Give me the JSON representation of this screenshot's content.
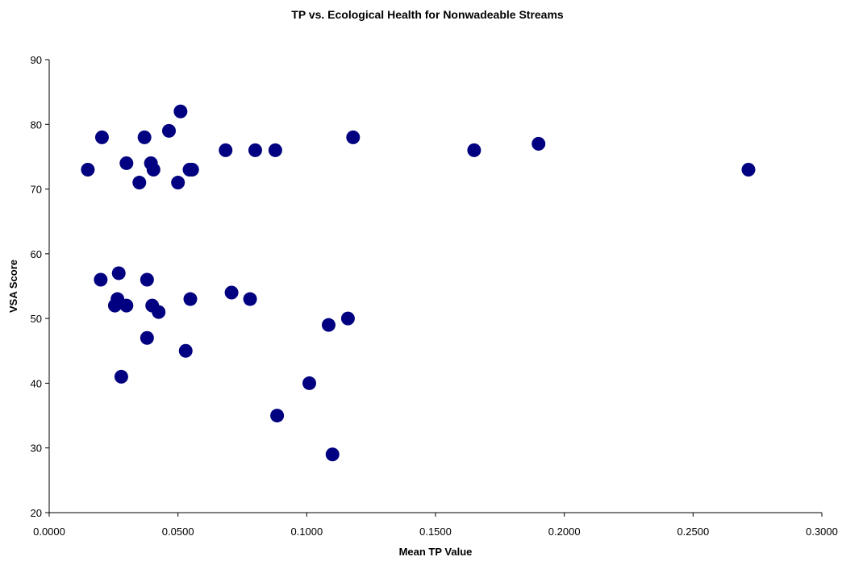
{
  "chart_data": {
    "type": "scatter",
    "title": "TP vs. Ecological Health for Nonwadeable Streams",
    "xlabel": "Mean TP Value",
    "ylabel": "VSA Score",
    "xlim": [
      0,
      0.3
    ],
    "ylim": [
      20,
      90
    ],
    "x_ticks": [
      0,
      0.05,
      0.1,
      0.15,
      0.2,
      0.25,
      0.3
    ],
    "x_tick_labels": [
      "0.0000",
      "0.0500",
      "0.1000",
      "0.1500",
      "0.2000",
      "0.2500",
      "0.3000"
    ],
    "y_ticks": [
      20,
      30,
      40,
      50,
      60,
      70,
      80,
      90
    ],
    "y_tick_labels": [
      "20",
      "30",
      "40",
      "50",
      "60",
      "70",
      "80",
      "90"
    ],
    "grid": false,
    "legend": "none",
    "marker_color": "#000080",
    "points": [
      {
        "x": 0.015,
        "y": 73
      },
      {
        "x": 0.0205,
        "y": 78
      },
      {
        "x": 0.03,
        "y": 74
      },
      {
        "x": 0.035,
        "y": 71
      },
      {
        "x": 0.037,
        "y": 78
      },
      {
        "x": 0.0395,
        "y": 74
      },
      {
        "x": 0.0405,
        "y": 73
      },
      {
        "x": 0.0465,
        "y": 79
      },
      {
        "x": 0.05,
        "y": 71
      },
      {
        "x": 0.051,
        "y": 82
      },
      {
        "x": 0.0545,
        "y": 73
      },
      {
        "x": 0.0555,
        "y": 73
      },
      {
        "x": 0.0685,
        "y": 76
      },
      {
        "x": 0.08,
        "y": 76
      },
      {
        "x": 0.0878,
        "y": 76
      },
      {
        "x": 0.118,
        "y": 78
      },
      {
        "x": 0.165,
        "y": 76
      },
      {
        "x": 0.19,
        "y": 77
      },
      {
        "x": 0.2715,
        "y": 73
      },
      {
        "x": 0.02,
        "y": 56
      },
      {
        "x": 0.027,
        "y": 57
      },
      {
        "x": 0.0265,
        "y": 53
      },
      {
        "x": 0.0255,
        "y": 52
      },
      {
        "x": 0.03,
        "y": 52
      },
      {
        "x": 0.038,
        "y": 56
      },
      {
        "x": 0.04,
        "y": 52
      },
      {
        "x": 0.0425,
        "y": 51
      },
      {
        "x": 0.038,
        "y": 47
      },
      {
        "x": 0.028,
        "y": 41
      },
      {
        "x": 0.053,
        "y": 45
      },
      {
        "x": 0.0548,
        "y": 53
      },
      {
        "x": 0.0708,
        "y": 54
      },
      {
        "x": 0.078,
        "y": 53
      },
      {
        "x": 0.1085,
        "y": 49
      },
      {
        "x": 0.116,
        "y": 50
      },
      {
        "x": 0.101,
        "y": 40
      },
      {
        "x": 0.0885,
        "y": 35
      },
      {
        "x": 0.11,
        "y": 29
      }
    ]
  }
}
